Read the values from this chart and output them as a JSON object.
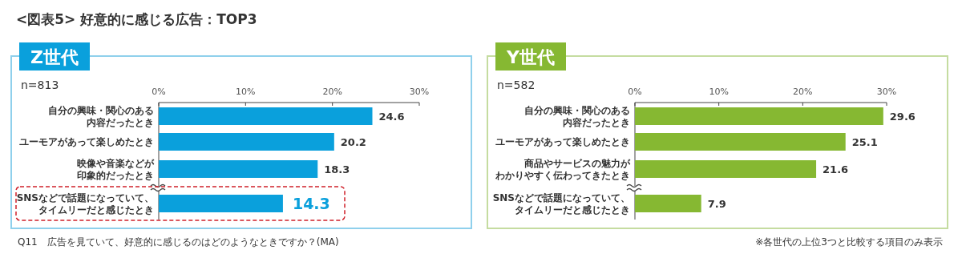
{
  "chart_data": [
    {
      "type": "bar",
      "orientation": "horizontal",
      "title": "Z世代",
      "annotations": [
        "<図表5> 好意的に感じる広告：TOP3",
        "n=813",
        "Q11　広告を見ていて、好意的に感じるのはどのようなときですか？(MA)"
      ],
      "categories": [
        "自分の興味・関心のある内容だったとき",
        "ユーモアがあって楽しめたとき",
        "映像や音楽などが印象的だったとき",
        "SNSなどで話題になっていて、タイムリーだと感じたとき"
      ],
      "series": [
        {
          "color": "#0aa0dc",
          "values": [
            24.6,
            20.2,
            18.3,
            14.3
          ]
        }
      ],
      "xlim": [
        0,
        30
      ],
      "xticks": [
        {
          "value": 0,
          "label": "0%"
        },
        {
          "value": 10,
          "label": "10%"
        },
        {
          "value": 20,
          "label": "20%"
        },
        {
          "value": 30,
          "label": "30%"
        }
      ],
      "data_labels": true
    },
    {
      "type": "bar",
      "orientation": "horizontal",
      "title": "Y世代",
      "annotations": [
        "n=582",
        "※各世代の上位3つと比較する項目のみ表示"
      ],
      "categories": [
        "自分の興味・関心のある内容だったとき",
        "ユーモアがあって楽しめたとき",
        "商品やサービスの魅力がわかりやすく伝わってきたとき",
        "SNSなどで話題になっていて、タイムリーだと感じたとき"
      ],
      "series": [
        {
          "color": "#86b832",
          "values": [
            29.6,
            25.1,
            21.6,
            7.9
          ]
        }
      ],
      "xlim": [
        0,
        30
      ],
      "xticks": [
        {
          "value": 0,
          "label": "0%"
        },
        {
          "value": 10,
          "label": "10%"
        },
        {
          "value": 20,
          "label": "20%"
        },
        {
          "value": 30,
          "label": "30%"
        }
      ],
      "data_labels": true
    }
  ]
}
